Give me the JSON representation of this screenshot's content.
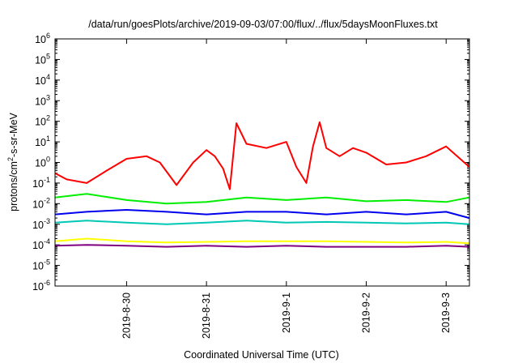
{
  "chart_data": {
    "type": "line",
    "title": "/data/run/goesPlots/archive/2019-09-03/07:00/flux/../flux/5daysMoonFluxes.txt",
    "xlabel": "Coordinated Universal Time (UTC)",
    "ylabel": {
      "pre": "protons/cm",
      "sup": "2",
      "post": "-s-sr-MeV"
    },
    "yscale": "log",
    "ylim": [
      1e-06,
      1000000.0
    ],
    "yticks": [
      {
        "v": -6,
        "base": "10",
        "exp": "-6"
      },
      {
        "v": -5,
        "base": "10",
        "exp": "-5"
      },
      {
        "v": -4,
        "base": "10",
        "exp": "-4"
      },
      {
        "v": -3,
        "base": "10",
        "exp": "-3"
      },
      {
        "v": -2,
        "base": "10",
        "exp": "-2"
      },
      {
        "v": -1,
        "base": "10",
        "exp": "-1"
      },
      {
        "v": 0,
        "base": "10",
        "exp": "0"
      },
      {
        "v": 1,
        "base": "10",
        "exp": "1"
      },
      {
        "v": 2,
        "base": "10",
        "exp": "2"
      },
      {
        "v": 3,
        "base": "10",
        "exp": "3"
      },
      {
        "v": 4,
        "base": "10",
        "exp": "4"
      },
      {
        "v": 5,
        "base": "10",
        "exp": "5"
      },
      {
        "v": 6,
        "base": "10",
        "exp": "6"
      }
    ],
    "xlim": [
      "2019-08-29 02:30",
      "2019-09-03 07:00"
    ],
    "xticks": [
      {
        "label": "2019-8-30",
        "t": "2019-08-30 00:00"
      },
      {
        "label": "2019-8-31",
        "t": "2019-08-31 00:00"
      },
      {
        "label": "2019-9-1",
        "t": "2019-09-01 00:00"
      },
      {
        "label": "2019-9-2",
        "t": "2019-09-02 00:00"
      },
      {
        "label": "2019-9-3",
        "t": "2019-09-03 00:00"
      }
    ],
    "series": [
      {
        "color": "#ff0000",
        "x": [
          "2019-08-29 02:30",
          "2019-08-29 06:00",
          "2019-08-29 12:00",
          "2019-08-29 18:00",
          "2019-08-30 00:00",
          "2019-08-30 06:00",
          "2019-08-30 10:00",
          "2019-08-30 15:00",
          "2019-08-30 20:00",
          "2019-08-31 00:00",
          "2019-08-31 02:30",
          "2019-08-31 05:00",
          "2019-08-31 07:00",
          "2019-08-31 09:00",
          "2019-08-31 12:00",
          "2019-08-31 18:00",
          "2019-09-01 00:00",
          "2019-09-01 03:00",
          "2019-09-01 06:00",
          "2019-09-01 08:00",
          "2019-09-01 10:00",
          "2019-09-01 12:00",
          "2019-09-01 16:00",
          "2019-09-01 20:00",
          "2019-09-02 00:00",
          "2019-09-02 06:00",
          "2019-09-02 12:00",
          "2019-09-02 18:00",
          "2019-09-03 00:00",
          "2019-09-03 07:00"
        ],
        "y": [
          0.3,
          0.15,
          0.1,
          0.4,
          1.5,
          2.0,
          1.0,
          0.08,
          1.0,
          4.0,
          2.0,
          0.5,
          0.05,
          80,
          8,
          5,
          10,
          0.6,
          0.1,
          6,
          90,
          5,
          2,
          5,
          3,
          0.8,
          1,
          2,
          6,
          0.6
        ]
      },
      {
        "color": "#00ee00",
        "x": [
          "2019-08-29 02:30",
          "2019-08-29 12:00",
          "2019-08-30 00:00",
          "2019-08-30 12:00",
          "2019-08-31 00:00",
          "2019-08-31 12:00",
          "2019-09-01 00:00",
          "2019-09-01 12:00",
          "2019-09-02 00:00",
          "2019-09-02 12:00",
          "2019-09-03 00:00",
          "2019-09-03 07:00"
        ],
        "y": [
          0.02,
          0.03,
          0.015,
          0.01,
          0.012,
          0.02,
          0.015,
          0.02,
          0.013,
          0.015,
          0.012,
          0.02
        ]
      },
      {
        "color": "#0000ee",
        "x": [
          "2019-08-29 02:30",
          "2019-08-29 12:00",
          "2019-08-30 00:00",
          "2019-08-30 12:00",
          "2019-08-31 00:00",
          "2019-08-31 12:00",
          "2019-09-01 00:00",
          "2019-09-01 12:00",
          "2019-09-02 00:00",
          "2019-09-02 12:00",
          "2019-09-03 00:00",
          "2019-09-03 07:00"
        ],
        "y": [
          0.003,
          0.004,
          0.005,
          0.004,
          0.003,
          0.004,
          0.004,
          0.003,
          0.004,
          0.003,
          0.004,
          0.002
        ]
      },
      {
        "color": "#00c8b4",
        "x": [
          "2019-08-29 02:30",
          "2019-08-29 12:00",
          "2019-08-30 00:00",
          "2019-08-30 12:00",
          "2019-08-31 00:00",
          "2019-08-31 12:00",
          "2019-09-01 00:00",
          "2019-09-01 12:00",
          "2019-09-02 00:00",
          "2019-09-02 12:00",
          "2019-09-03 00:00",
          "2019-09-03 07:00"
        ],
        "y": [
          0.0012,
          0.0015,
          0.0012,
          0.001,
          0.0012,
          0.0015,
          0.0012,
          0.0013,
          0.0012,
          0.0011,
          0.0012,
          0.001
        ]
      },
      {
        "color": "#ffff00",
        "x": [
          "2019-08-29 02:30",
          "2019-08-29 12:00",
          "2019-08-30 00:00",
          "2019-08-30 12:00",
          "2019-08-31 00:00",
          "2019-08-31 12:00",
          "2019-09-01 00:00",
          "2019-09-01 12:00",
          "2019-09-02 00:00",
          "2019-09-02 12:00",
          "2019-09-03 00:00",
          "2019-09-03 07:00"
        ],
        "y": [
          0.00015,
          0.0002,
          0.00015,
          0.00013,
          0.00014,
          0.00015,
          0.00015,
          0.00015,
          0.00014,
          0.00013,
          0.00014,
          0.00012
        ]
      },
      {
        "color": "#800080",
        "x": [
          "2019-08-29 02:30",
          "2019-08-29 12:00",
          "2019-08-30 00:00",
          "2019-08-30 12:00",
          "2019-08-31 00:00",
          "2019-08-31 12:00",
          "2019-09-01 00:00",
          "2019-09-01 12:00",
          "2019-09-02 00:00",
          "2019-09-02 12:00",
          "2019-09-03 00:00",
          "2019-09-03 07:00"
        ],
        "y": [
          9e-05,
          0.0001,
          9e-05,
          8e-05,
          9e-05,
          8e-05,
          9e-05,
          8e-05,
          8e-05,
          8e-05,
          9e-05,
          8e-05
        ]
      }
    ],
    "grid": false,
    "legend": false
  }
}
